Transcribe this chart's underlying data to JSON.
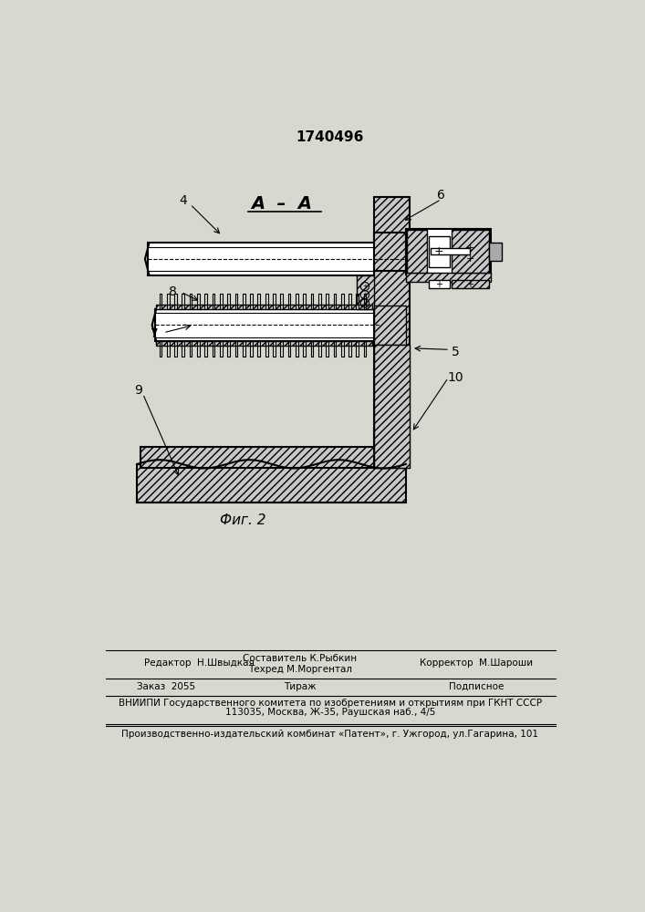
{
  "title": "1740496",
  "bg_color": "#d8d8d0",
  "section_label": "А  –  А",
  "fig_label": "Фиг. 2",
  "footer_line1_left": "Редактор  Н.Швыдкая",
  "footer_line1_mid1": "Составитель К.Рыбкин",
  "footer_line1_mid2": "Техред М.Моргентал",
  "footer_line1_right": "Корректор  М.Шароши",
  "footer_line2_left": "Заказ  2055",
  "footer_line2_mid": "Тираж",
  "footer_line2_right": "Подписное",
  "footer_line3": "ВНИИПИ Государственного комитета по изобретениям и открытиям при ГКНТ СССР",
  "footer_line4": "113035, Москва, Ж-35, Раушская наб., 4/5",
  "footer_line5": "Производственно-издательский комбинат «Патент», г. Ужгород, ул.Гагарина, 101"
}
